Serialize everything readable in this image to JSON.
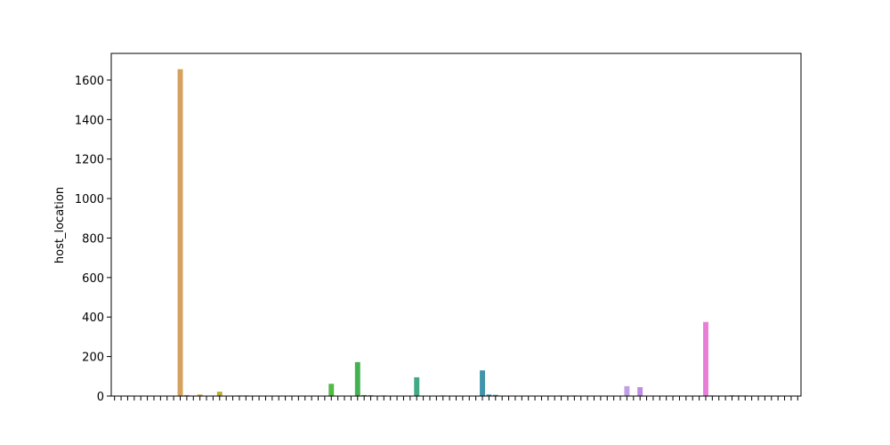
{
  "chart_data": {
    "type": "bar",
    "ylabel": "host_location",
    "categories": [
      null,
      null,
      null,
      null,
      null,
      null,
      null,
      null,
      null,
      null,
      null,
      null,
      null,
      null,
      null,
      null,
      null,
      null,
      null,
      null,
      null,
      null,
      null,
      null,
      null,
      null,
      null,
      null,
      null,
      null,
      null,
      null,
      null,
      null,
      null,
      null,
      null,
      null,
      null,
      null,
      null,
      null,
      null,
      null,
      null,
      null,
      null,
      null,
      null,
      null,
      null,
      null,
      null,
      null,
      null,
      null,
      null,
      null,
      null,
      null,
      null,
      null,
      null,
      null,
      null,
      null,
      null,
      null,
      null,
      null,
      null,
      null,
      null,
      null,
      null,
      null,
      null,
      null,
      null,
      null,
      null,
      null,
      null,
      null,
      null,
      null,
      null,
      null,
      null,
      null,
      null,
      null,
      null,
      null,
      null,
      null,
      null,
      null,
      null,
      null,
      null,
      null,
      null,
      null,
      null
    ],
    "values": [
      1,
      1,
      1,
      1,
      1,
      1,
      1,
      1,
      1,
      1,
      1655,
      5,
      1,
      8,
      1,
      1,
      22,
      1,
      1,
      3,
      3,
      1,
      1,
      1,
      1,
      1,
      1,
      2,
      1,
      1,
      1,
      1,
      1,
      62,
      1,
      1,
      1,
      172,
      5,
      4,
      1,
      3,
      1,
      1,
      1,
      1,
      95,
      1,
      1,
      1,
      3,
      1,
      1,
      1,
      1,
      1,
      130,
      8,
      6,
      1,
      1,
      1,
      1,
      1,
      1,
      1,
      1,
      1,
      3,
      1,
      3,
      1,
      1,
      1,
      1,
      1,
      1,
      1,
      50,
      1,
      45,
      1,
      1,
      2,
      1,
      1,
      1,
      1,
      1,
      1,
      375,
      3,
      1,
      1,
      4,
      3,
      3,
      1,
      1,
      1,
      1,
      1,
      1,
      1,
      1
    ],
    "colors": [
      "hsl(0,60%,60%)",
      "hsl(3,60%,60%)",
      "hsl(7,60%,60%)",
      "hsl(10,60%,60%)",
      "hsl(14,60%,60%)",
      "hsl(17,60%,60%)",
      "hsl(21,60%,60%)",
      "hsl(24,60%,60%)",
      "hsl(27,60%,60%)",
      "hsl(31,60%,60%)",
      "hsl(34,60%,60%)",
      "hsl(38,60%,60%)",
      "hsl(41,60%,60%)",
      "hsl(45,60%,55%)",
      "hsl(48,60%,55%)",
      "hsl(51,60%,50%)",
      "hsl(55,60%,45%)",
      "hsl(58,60%,45%)",
      "hsl(62,55%,45%)",
      "hsl(65,55%,45%)",
      "hsl(69,55%,45%)",
      "hsl(72,55%,45%)",
      "hsl(75,55%,45%)",
      "hsl(79,55%,45%)",
      "hsl(82,55%,45%)",
      "hsl(86,55%,45%)",
      "hsl(89,55%,45%)",
      "hsl(93,50%,45%)",
      "hsl(96,50%,45%)",
      "hsl(99,50%,45%)",
      "hsl(103,50%,45%)",
      "hsl(106,50%,45%)",
      "hsl(110,50%,45%)",
      "hsl(113,45%,50%)",
      "hsl(117,45%,50%)",
      "hsl(120,45%,50%)",
      "hsl(123,45%,48%)",
      "hsl(127,45%,48%)",
      "hsl(130,45%,48%)",
      "hsl(134,45%,48%)",
      "hsl(137,45%,48%)",
      "hsl(141,45%,48%)",
      "hsl(144,45%,48%)",
      "hsl(147,45%,48%)",
      "hsl(151,45%,46%)",
      "hsl(154,45%,46%)",
      "hsl(158,45%,46%)",
      "hsl(161,45%,46%)",
      "hsl(165,45%,46%)",
      "hsl(168,45%,46%)",
      "hsl(172,45%,46%)",
      "hsl(175,45%,46%)",
      "hsl(178,45%,46%)",
      "hsl(182,45%,46%)",
      "hsl(185,45%,46%)",
      "hsl(189,45%,46%)",
      "hsl(192,45%,46%)",
      "hsl(196,50%,50%)",
      "hsl(199,50%,50%)",
      "hsl(202,50%,55%)",
      "hsl(206,55%,60%)",
      "hsl(209,55%,60%)",
      "hsl(213,55%,62%)",
      "hsl(216,55%,65%)",
      "hsl(220,55%,68%)",
      "hsl(223,55%,70%)",
      "hsl(226,55%,72%)",
      "hsl(230,55%,74%)",
      "hsl(233,55%,75%)",
      "hsl(237,55%,75%)",
      "hsl(240,55%,76%)",
      "hsl(244,55%,76%)",
      "hsl(247,55%,76%)",
      "hsl(250,55%,76%)",
      "hsl(254,55%,76%)",
      "hsl(257,55%,76%)",
      "hsl(261,55%,76%)",
      "hsl(264,55%,76%)",
      "hsl(268,55%,76%)",
      "hsl(271,60%,74%)",
      "hsl(274,60%,72%)",
      "hsl(278,65%,70%)",
      "hsl(281,65%,70%)",
      "hsl(285,70%,68%)",
      "hsl(288,70%,68%)",
      "hsl(292,70%,68%)",
      "hsl(295,70%,68%)",
      "hsl(298,70%,68%)",
      "hsl(302,70%,68%)",
      "hsl(305,70%,68%)",
      "hsl(309,70%,70%)",
      "hsl(312,70%,68%)",
      "hsl(316,70%,66%)",
      "hsl(319,70%,66%)",
      "hsl(322,70%,66%)",
      "hsl(326,70%,66%)",
      "hsl(329,70%,66%)",
      "hsl(333,70%,66%)",
      "hsl(336,70%,66%)",
      "hsl(340,70%,66%)",
      "hsl(343,70%,66%)",
      "hsl(346,70%,66%)",
      "hsl(350,70%,66%)",
      "hsl(353,70%,66%)",
      "hsl(357,70%,66%)"
    ],
    "ylim": [
      0,
      1735
    ],
    "yticks": [
      0,
      200,
      400,
      600,
      800,
      1000,
      1200,
      1400,
      1600
    ]
  }
}
